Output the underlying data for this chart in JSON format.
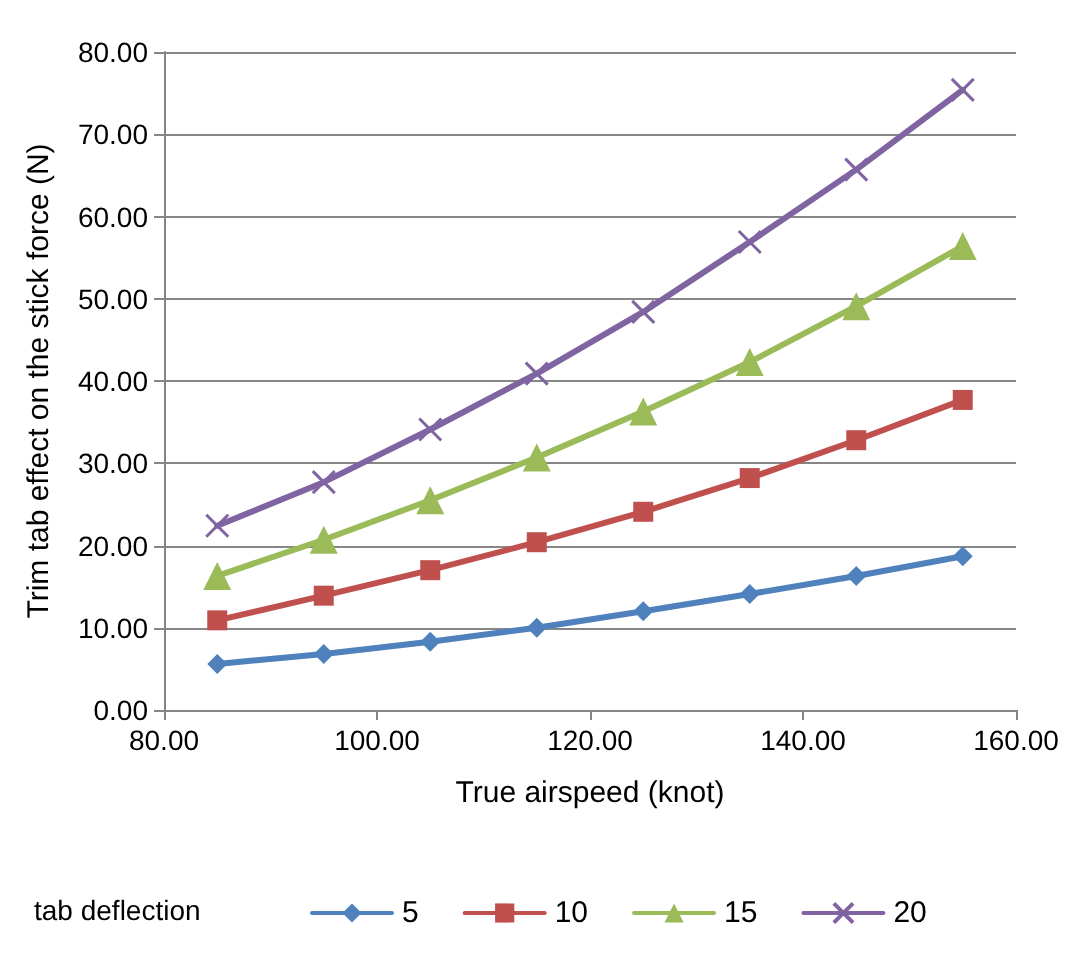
{
  "chart_data": {
    "type": "line",
    "xlabel": "True airspeed (knot)",
    "ylabel": "Trim tab effect on the stick force (N)",
    "legend_title": "tab deflection",
    "x": [
      85,
      95,
      105,
      115,
      125,
      135,
      145,
      155
    ],
    "series": [
      {
        "name": "5",
        "color": "#4f81bd",
        "marker": "diamond",
        "values": [
          5.6,
          6.8,
          8.3,
          10.0,
          12.0,
          14.1,
          16.3,
          18.7
        ]
      },
      {
        "name": "10",
        "color": "#c0504d",
        "marker": "square",
        "values": [
          10.9,
          13.9,
          17.0,
          20.4,
          24.1,
          28.2,
          32.8,
          37.7
        ]
      },
      {
        "name": "15",
        "color": "#9bbb59",
        "marker": "triangle",
        "values": [
          16.3,
          20.7,
          25.5,
          30.7,
          36.3,
          42.3,
          49.1,
          56.4
        ]
      },
      {
        "name": "20",
        "color": "#8064a2",
        "marker": "cross",
        "values": [
          22.4,
          27.7,
          34.1,
          40.9,
          48.4,
          56.9,
          65.7,
          75.4
        ]
      }
    ],
    "xlim": [
      80,
      160
    ],
    "xticks": [
      {
        "value": 80,
        "label": "80.00"
      },
      {
        "value": 100,
        "label": "100.00"
      },
      {
        "value": 120,
        "label": "120.00"
      },
      {
        "value": 140,
        "label": "140.00"
      },
      {
        "value": 160,
        "label": "160.00"
      }
    ],
    "ylim": [
      0,
      80
    ],
    "yticks": [
      {
        "value": 0,
        "label": "0.00"
      },
      {
        "value": 10,
        "label": "10.00"
      },
      {
        "value": 20,
        "label": "20.00"
      },
      {
        "value": 30,
        "label": "30.00"
      },
      {
        "value": 40,
        "label": "40.00"
      },
      {
        "value": 50,
        "label": "50.00"
      },
      {
        "value": 60,
        "label": "60.00"
      },
      {
        "value": 70,
        "label": "70.00"
      },
      {
        "value": 80,
        "label": "80.00"
      }
    ],
    "grid": "y",
    "legend": "bottom",
    "line_style": "solid"
  }
}
